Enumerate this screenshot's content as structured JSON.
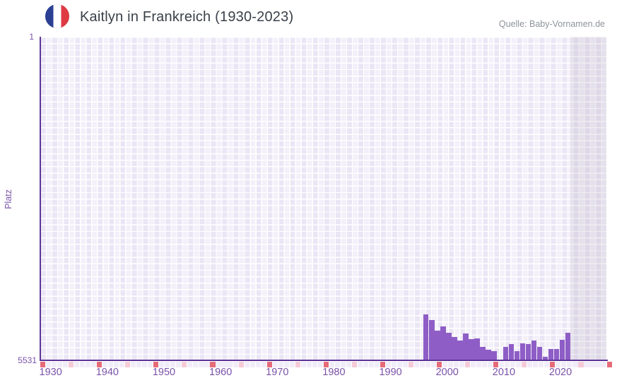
{
  "header": {
    "title": "Kaitlyn in Frankreich (1930-2023)",
    "source": "Quelle: Baby-Vornamen.de",
    "flag": "france"
  },
  "colors": {
    "bar": "#8E5EC6",
    "axis_line": "#5C3597",
    "tick_label": "#7A52A8",
    "title_text": "#3A4049",
    "source_text": "#8E939A",
    "flag_blue": "#2B3F94",
    "flag_red": "#DF3A44",
    "plot_column_dark": "#EBE6F5",
    "plot_column_light": "#F3F0FA",
    "right_band_overlay": "rgba(98,88,122,0.10)",
    "strip_decade": "#E56B79",
    "strip_half_decade": "#F5CBD7",
    "strip_year": "#F1EDF8"
  },
  "chart_data": {
    "type": "bar",
    "title": "Kaitlyn in Frankreich (1930-2023)",
    "xlabel": "",
    "ylabel": "Platz",
    "y_axis": {
      "top_label": "1",
      "bottom_label": "5531",
      "min": 1,
      "max": 5531,
      "inverted": true
    },
    "x_ticks": [
      "1930",
      "1940",
      "1950",
      "1960",
      "1970",
      "1980",
      "1990",
      "2000",
      "2010",
      "2020"
    ],
    "x_range_years": [
      1930,
      2023
    ],
    "grid": true,
    "legend": "none",
    "series": [
      {
        "name": "Platz",
        "points": [
          {
            "year": 1996,
            "rank": 4746
          },
          {
            "year": 1997,
            "rank": 4843
          },
          {
            "year": 1998,
            "rank": 5024
          },
          {
            "year": 1999,
            "rank": 4951
          },
          {
            "year": 2000,
            "rank": 5060
          },
          {
            "year": 2001,
            "rank": 5133
          },
          {
            "year": 2002,
            "rank": 5193
          },
          {
            "year": 2003,
            "rank": 5072
          },
          {
            "year": 2004,
            "rank": 5169
          },
          {
            "year": 2005,
            "rank": 5157
          },
          {
            "year": 2006,
            "rank": 5302
          },
          {
            "year": 2007,
            "rank": 5350
          },
          {
            "year": 2008,
            "rank": 5374
          },
          {
            "year": 2009,
            "rank": null
          },
          {
            "year": 2010,
            "rank": 5302
          },
          {
            "year": 2011,
            "rank": 5253
          },
          {
            "year": 2012,
            "rank": 5374
          },
          {
            "year": 2013,
            "rank": 5241
          },
          {
            "year": 2014,
            "rank": 5253
          },
          {
            "year": 2015,
            "rank": 5193
          },
          {
            "year": 2016,
            "rank": 5302
          },
          {
            "year": 2017,
            "rank": 5471
          },
          {
            "year": 2018,
            "rank": 5338
          },
          {
            "year": 2019,
            "rank": 5338
          },
          {
            "year": 2020,
            "rank": 5181
          },
          {
            "year": 2021,
            "rank": 5060
          }
        ]
      }
    ]
  }
}
